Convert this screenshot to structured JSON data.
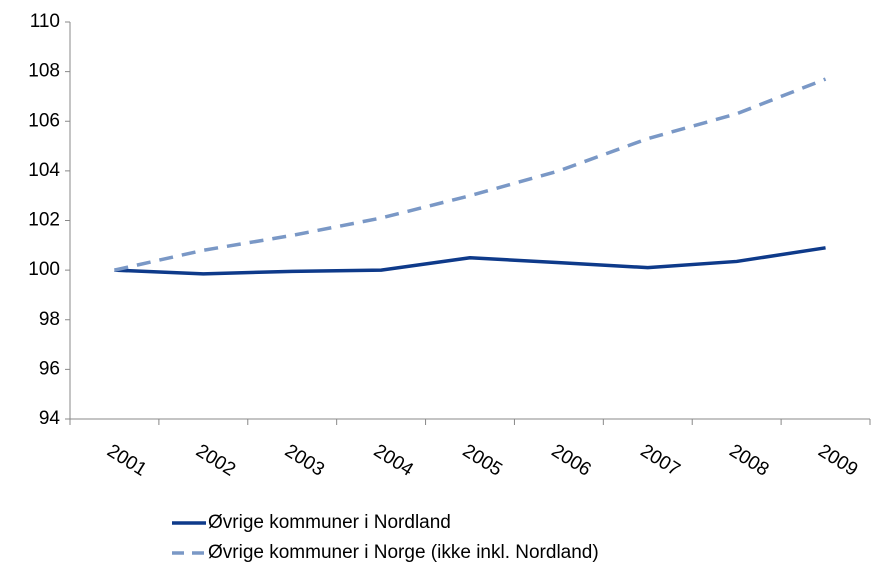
{
  "chart_data": {
    "type": "line",
    "categories": [
      "2001",
      "2002",
      "2003",
      "2004",
      "2005",
      "2006",
      "2007",
      "2008",
      "2009"
    ],
    "series": [
      {
        "name": "Øvrige kommuner i Nordland",
        "color": "#0e3a8a",
        "dash": "solid",
        "values": [
          100,
          99.85,
          99.95,
          100.0,
          100.5,
          100.3,
          100.1,
          100.35,
          100.9
        ]
      },
      {
        "name": "Øvrige kommuner i Norge (ikke inkl. Nordland)",
        "color": "#7a98c6",
        "dash": "dashed",
        "values": [
          100,
          100.8,
          101.4,
          102.1,
          103.0,
          104.0,
          105.3,
          106.3,
          107.7
        ]
      }
    ],
    "ylim": [
      94,
      110
    ],
    "yticks": [
      94,
      96,
      98,
      100,
      102,
      104,
      106,
      108,
      110
    ],
    "grid": false,
    "legend": "bottom"
  }
}
